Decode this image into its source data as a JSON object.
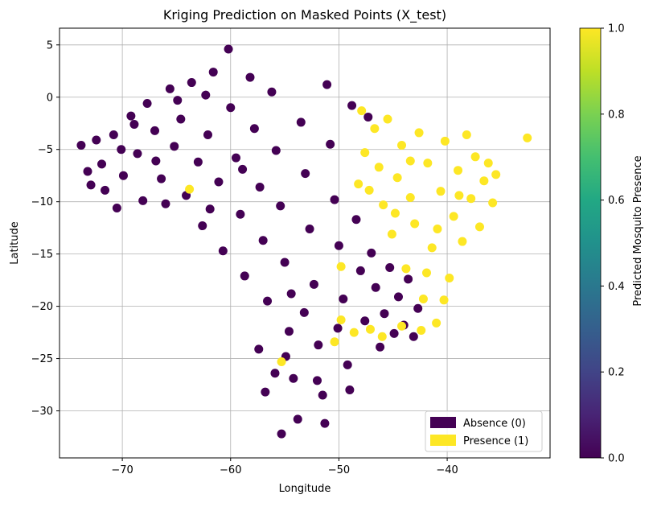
{
  "chart_data": {
    "type": "scatter",
    "title": "Kriging Prediction on Masked Points (X_test)",
    "xlabel": "Longitude",
    "ylabel": "Latitude",
    "xlim": [
      -75.8,
      -30.5
    ],
    "ylim": [
      -34.5,
      6.6
    ],
    "xticks": [
      -70,
      -60,
      -50,
      -40
    ],
    "yticks": [
      5,
      0,
      -5,
      -10,
      -15,
      -20,
      -25,
      -30
    ],
    "grid": true,
    "legend_position": "lower-right",
    "legend": [
      {
        "label": "Absence (0)",
        "color": "#440154"
      },
      {
        "label": "Presence (1)",
        "color": "#fde725"
      }
    ],
    "colorbar": {
      "label": "Predicted Mosquito Presence",
      "range": [
        0.0,
        1.0
      ],
      "ticks": [
        "0.0",
        "0.2",
        "0.4",
        "0.6",
        "0.8",
        "1.0"
      ],
      "colormap": "viridis"
    },
    "series": [
      {
        "name": "Absence (0)",
        "value": 0,
        "color": "#440154",
        "points": [
          [
            -73.8,
            -4.6
          ],
          [
            -73.2,
            -7.1
          ],
          [
            -72.4,
            -4.1
          ],
          [
            -71.6,
            -8.9
          ],
          [
            -70.8,
            -3.6
          ],
          [
            -70.5,
            -10.6
          ],
          [
            -69.9,
            -7.5
          ],
          [
            -69.2,
            -1.8
          ],
          [
            -68.6,
            -5.4
          ],
          [
            -68.1,
            -9.9
          ],
          [
            -67.7,
            -0.6
          ],
          [
            -67.0,
            -3.2
          ],
          [
            -66.4,
            -7.8
          ],
          [
            -66.0,
            -10.2
          ],
          [
            -65.6,
            0.8
          ],
          [
            -65.2,
            -4.7
          ],
          [
            -64.6,
            -2.1
          ],
          [
            -64.1,
            -9.4
          ],
          [
            -63.6,
            1.4
          ],
          [
            -63.0,
            -6.2
          ],
          [
            -62.6,
            -12.3
          ],
          [
            -62.1,
            -3.6
          ],
          [
            -61.6,
            2.4
          ],
          [
            -61.1,
            -8.1
          ],
          [
            -60.7,
            -14.7
          ],
          [
            -60.2,
            4.6
          ],
          [
            -60.0,
            -1.0
          ],
          [
            -59.5,
            -5.8
          ],
          [
            -59.1,
            -11.2
          ],
          [
            -58.7,
            -17.1
          ],
          [
            -58.2,
            1.9
          ],
          [
            -57.8,
            -3.0
          ],
          [
            -57.3,
            -8.6
          ],
          [
            -57.0,
            -13.7
          ],
          [
            -56.6,
            -19.5
          ],
          [
            -56.2,
            0.5
          ],
          [
            -55.8,
            -5.1
          ],
          [
            -55.4,
            -10.4
          ],
          [
            -55.0,
            -15.8
          ],
          [
            -54.6,
            -22.4
          ],
          [
            -54.2,
            -26.9
          ],
          [
            -53.8,
            -30.8
          ],
          [
            -53.5,
            -2.4
          ],
          [
            -53.1,
            -7.3
          ],
          [
            -52.7,
            -12.6
          ],
          [
            -52.3,
            -17.9
          ],
          [
            -51.9,
            -23.7
          ],
          [
            -51.5,
            -28.5
          ],
          [
            -51.1,
            1.2
          ],
          [
            -50.8,
            -4.5
          ],
          [
            -50.4,
            -9.8
          ],
          [
            -50.0,
            -14.2
          ],
          [
            -49.6,
            -19.3
          ],
          [
            -49.2,
            -25.6
          ],
          [
            -48.8,
            -0.8
          ],
          [
            -48.4,
            -11.7
          ],
          [
            -48.0,
            -16.6
          ],
          [
            -47.6,
            -21.4
          ],
          [
            -47.3,
            -1.9
          ],
          [
            -47.0,
            -14.9
          ],
          [
            -46.6,
            -18.2
          ],
          [
            -46.2,
            -23.9
          ],
          [
            -45.8,
            -20.7
          ],
          [
            -45.3,
            -16.3
          ],
          [
            -44.9,
            -22.6
          ],
          [
            -44.5,
            -19.1
          ],
          [
            -44.0,
            -21.8
          ],
          [
            -43.6,
            -17.4
          ],
          [
            -43.1,
            -22.9
          ],
          [
            -42.7,
            -20.2
          ],
          [
            -56.8,
            -28.2
          ],
          [
            -55.3,
            -32.2
          ],
          [
            -54.9,
            -24.8
          ],
          [
            -53.2,
            -20.6
          ],
          [
            -52.0,
            -27.1
          ],
          [
            -51.3,
            -31.2
          ],
          [
            -50.1,
            -22.1
          ],
          [
            -49.0,
            -28.0
          ],
          [
            -58.9,
            -6.9
          ],
          [
            -61.9,
            -10.7
          ],
          [
            -64.9,
            -0.3
          ],
          [
            -66.9,
            -6.1
          ],
          [
            -68.9,
            -2.6
          ],
          [
            -71.9,
            -6.4
          ],
          [
            -72.9,
            -8.4
          ],
          [
            -70.1,
            -5.0
          ],
          [
            -62.3,
            0.2
          ],
          [
            -57.4,
            -24.1
          ],
          [
            -55.9,
            -26.4
          ],
          [
            -54.4,
            -18.8
          ]
        ]
      },
      {
        "name": "Presence (1)",
        "value": 1,
        "color": "#fde725",
        "points": [
          [
            -47.6,
            -5.3
          ],
          [
            -47.2,
            -8.9
          ],
          [
            -46.7,
            -3.0
          ],
          [
            -46.3,
            -6.7
          ],
          [
            -45.9,
            -10.3
          ],
          [
            -45.5,
            -2.1
          ],
          [
            -45.1,
            -13.1
          ],
          [
            -44.6,
            -7.7
          ],
          [
            -44.2,
            -4.6
          ],
          [
            -43.8,
            -16.4
          ],
          [
            -43.4,
            -9.6
          ],
          [
            -43.0,
            -12.1
          ],
          [
            -42.6,
            -3.4
          ],
          [
            -42.2,
            -19.3
          ],
          [
            -41.8,
            -6.3
          ],
          [
            -41.4,
            -14.4
          ],
          [
            -41.0,
            -21.6
          ],
          [
            -40.6,
            -9.0
          ],
          [
            -40.2,
            -4.2
          ],
          [
            -39.8,
            -17.3
          ],
          [
            -39.4,
            -11.4
          ],
          [
            -39.0,
            -7.0
          ],
          [
            -38.6,
            -13.8
          ],
          [
            -38.2,
            -3.6
          ],
          [
            -37.8,
            -9.7
          ],
          [
            -37.4,
            -5.7
          ],
          [
            -37.0,
            -12.4
          ],
          [
            -36.6,
            -8.0
          ],
          [
            -36.2,
            -6.3
          ],
          [
            -35.8,
            -10.1
          ],
          [
            -35.5,
            -7.4
          ],
          [
            -32.6,
            -3.9
          ],
          [
            -49.8,
            -21.3
          ],
          [
            -48.6,
            -22.5
          ],
          [
            -47.1,
            -22.2
          ],
          [
            -46.0,
            -22.9
          ],
          [
            -44.2,
            -21.9
          ],
          [
            -42.4,
            -22.3
          ],
          [
            -50.4,
            -23.4
          ],
          [
            -55.3,
            -25.3
          ],
          [
            -63.8,
            -8.8
          ],
          [
            -47.9,
            -1.3
          ],
          [
            -49.8,
            -16.2
          ],
          [
            -48.2,
            -8.3
          ],
          [
            -41.9,
            -16.8
          ],
          [
            -40.9,
            -12.6
          ],
          [
            -43.4,
            -6.1
          ],
          [
            -38.9,
            -9.4
          ],
          [
            -44.8,
            -11.1
          ],
          [
            -40.3,
            -19.4
          ]
        ]
      }
    ]
  }
}
